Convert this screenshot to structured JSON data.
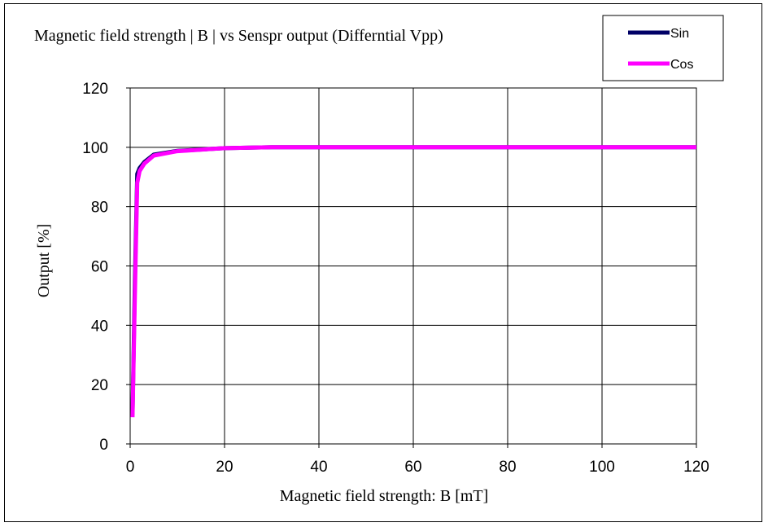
{
  "chart_data": {
    "type": "line",
    "title": "Magnetic field strength | B | vs Senspr output  (Differntial Vpp)",
    "xlabel": "Magnetic field strength: B [mT]",
    "ylabel": "Output [%]",
    "xlim": [
      0,
      120
    ],
    "ylim": [
      0,
      120
    ],
    "xticks": [
      0,
      20,
      40,
      60,
      80,
      100,
      120
    ],
    "yticks": [
      0,
      20,
      40,
      60,
      80,
      100,
      120
    ],
    "grid": true,
    "legend": "top-right",
    "series": [
      {
        "name": "Sin",
        "color": "#000066",
        "x": [
          0.5,
          1,
          1.5,
          2,
          3,
          5,
          10,
          20,
          30,
          40,
          60,
          80,
          100,
          120
        ],
        "y": [
          10,
          55,
          91,
          93,
          95,
          97.5,
          98.8,
          99.7,
          100,
          100,
          100,
          100,
          100,
          100
        ]
      },
      {
        "name": "Cos",
        "color": "#ff00ff",
        "x": [
          0.5,
          1,
          1.5,
          2,
          3,
          5,
          10,
          20,
          30,
          40,
          60,
          80,
          100,
          120
        ],
        "y": [
          9,
          50,
          88,
          92,
          94.5,
          97.2,
          98.7,
          99.7,
          100,
          100,
          100,
          100,
          100,
          100
        ]
      }
    ]
  }
}
